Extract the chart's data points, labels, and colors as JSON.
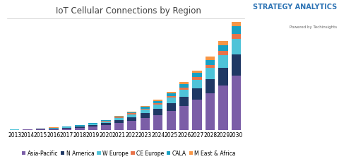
{
  "title": "IoT Cellular Connections by Region",
  "watermark_line1": "STRATEGY ANALYTICS",
  "watermark_line2": "Powered by Techinsights",
  "years": [
    2013,
    2014,
    2015,
    2016,
    2017,
    2018,
    2019,
    2020,
    2021,
    2022,
    2023,
    2024,
    2025,
    2026,
    2027,
    2028,
    2029,
    2030
  ],
  "regions": [
    "Asia-Pacific",
    "N America",
    "W Europe",
    "CE Europe",
    "CALA",
    "M East & Africa"
  ],
  "colors": [
    "#8064a2",
    "#17375e",
    "#4bacc6",
    "#e36c09",
    "#31849b",
    "#e36c09"
  ],
  "colors2": [
    "#7b5ea7",
    "#1f3864",
    "#4fc3d8",
    "#e8734a",
    "#17a0c4",
    "#f79646"
  ],
  "data": {
    "Asia-Pacific": [
      0.08,
      0.13,
      0.2,
      0.28,
      0.38,
      0.55,
      0.8,
      1.1,
      1.55,
      2.1,
      2.7,
      3.4,
      4.3,
      5.4,
      6.7,
      8.2,
      9.9,
      12.0
    ],
    "N America": [
      0.04,
      0.06,
      0.09,
      0.13,
      0.18,
      0.25,
      0.34,
      0.46,
      0.62,
      0.82,
      1.05,
      1.32,
      1.65,
      2.05,
      2.55,
      3.15,
      3.85,
      4.7
    ],
    "W Europe": [
      0.02,
      0.04,
      0.07,
      0.1,
      0.14,
      0.19,
      0.26,
      0.36,
      0.48,
      0.63,
      0.8,
      1.0,
      1.25,
      1.56,
      1.93,
      2.38,
      2.9,
      3.55
    ],
    "CE Europe": [
      0.01,
      0.01,
      0.02,
      0.03,
      0.04,
      0.06,
      0.08,
      0.11,
      0.15,
      0.19,
      0.24,
      0.3,
      0.38,
      0.47,
      0.58,
      0.72,
      0.88,
      1.08
    ],
    "CALA": [
      0.01,
      0.02,
      0.03,
      0.04,
      0.06,
      0.08,
      0.11,
      0.15,
      0.2,
      0.26,
      0.34,
      0.43,
      0.55,
      0.69,
      0.87,
      1.08,
      1.33,
      1.63
    ],
    "M East & Africa": [
      0.01,
      0.01,
      0.02,
      0.03,
      0.04,
      0.05,
      0.07,
      0.1,
      0.13,
      0.17,
      0.22,
      0.28,
      0.35,
      0.45,
      0.56,
      0.7,
      0.87,
      1.07
    ]
  },
  "ylim": [
    0,
    24
  ],
  "background_color": "#ffffff",
  "grid_color": "#d9d9d9",
  "title_fontsize": 8.5,
  "tick_fontsize": 5.5,
  "legend_fontsize": 5.5
}
